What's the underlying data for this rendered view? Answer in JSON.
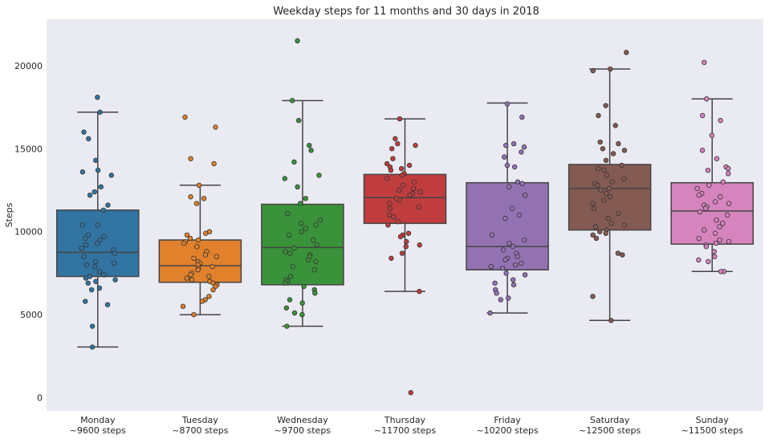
{
  "chart_data": {
    "type": "box",
    "title": "Weekday steps for 11 months and 30 days in 2018",
    "xlabel": "",
    "ylabel": "Steps",
    "ylim": [
      -800,
      22800
    ],
    "yticks": [
      0,
      5000,
      10000,
      15000,
      20000
    ],
    "grid": false,
    "legend": "none",
    "colors": {
      "background": "#eaeaf2",
      "whisker": "#444444",
      "point_edge": "#333333"
    },
    "categories": [
      {
        "day": "Monday",
        "label": "~9600 steps",
        "color": "#3274a1",
        "whisker_low": 3050,
        "q1": 7300,
        "median": 8750,
        "q3": 11300,
        "whisker_high": 17200,
        "points": [
          18100,
          17200,
          16000,
          15600,
          14300,
          13700,
          13600,
          13400,
          12700,
          12400,
          12200,
          11600,
          11300,
          10400,
          10400,
          9800,
          9700,
          9600,
          9500,
          9300,
          9200,
          9000,
          8900,
          8700,
          8500,
          8200,
          8100,
          8000,
          7900,
          7600,
          7400,
          7300,
          7200,
          7100,
          7000,
          6900,
          6600,
          6500,
          5800,
          5600,
          4300,
          3050
        ]
      },
      {
        "day": "Tuesday",
        "label": "~8700 steps",
        "color": "#e1812c",
        "whisker_low": 5000,
        "q1": 6950,
        "median": 7950,
        "q3": 9500,
        "whisker_high": 12800,
        "points": [
          16900,
          16300,
          14400,
          14100,
          12800,
          12100,
          12000,
          11700,
          10000,
          9900,
          9800,
          9600,
          9500,
          9400,
          9300,
          9100,
          8800,
          8600,
          8500,
          8400,
          8200,
          8100,
          8000,
          7900,
          7800,
          7700,
          7500,
          7400,
          7300,
          7200,
          7100,
          7000,
          6900,
          6800,
          6700,
          6500,
          6100,
          5900,
          5800,
          5500,
          5000
        ]
      },
      {
        "day": "Wednesday",
        "label": "~9700 steps",
        "color": "#3a923a",
        "whisker_low": 4300,
        "q1": 6800,
        "median": 9050,
        "q3": 11650,
        "whisker_high": 17900,
        "points": [
          21500,
          17900,
          16700,
          15200,
          14900,
          14200,
          13400,
          13200,
          12700,
          12000,
          11700,
          11100,
          10700,
          10500,
          10400,
          10200,
          10000,
          9800,
          9500,
          9200,
          9000,
          8800,
          8700,
          8600,
          8500,
          8300,
          8200,
          7900,
          7700,
          7300,
          7100,
          7000,
          6900,
          6700,
          6500,
          6300,
          5900,
          5700,
          5400,
          5100,
          5000,
          4300
        ]
      },
      {
        "day": "Thursday",
        "label": "~11700 steps",
        "color": "#c03d3e",
        "whisker_low": 6400,
        "q1": 10500,
        "median": 12050,
        "q3": 13450,
        "whisker_high": 16800,
        "points": [
          16800,
          15600,
          15300,
          15200,
          15000,
          14400,
          14100,
          14000,
          13900,
          13800,
          13700,
          13500,
          13400,
          13200,
          13000,
          12800,
          12600,
          12500,
          12400,
          12300,
          12200,
          12000,
          11900,
          11700,
          11500,
          11400,
          11000,
          10900,
          10600,
          10400,
          9900,
          9800,
          9700,
          9400,
          9200,
          9100,
          8700,
          8400,
          6400,
          300
        ]
      },
      {
        "day": "Friday",
        "label": "~10200 steps",
        "color": "#9372b2",
        "whisker_low": 5100,
        "q1": 7700,
        "median": 9100,
        "q3": 12950,
        "whisker_high": 17750,
        "points": [
          17700,
          16900,
          15300,
          15200,
          15100,
          14800,
          14500,
          14000,
          13900,
          13000,
          12900,
          12700,
          12200,
          11400,
          11000,
          10800,
          9800,
          9500,
          9300,
          9100,
          8900,
          8700,
          8500,
          8400,
          8300,
          8100,
          8000,
          7900,
          7800,
          7500,
          7400,
          7100,
          6900,
          6800,
          6500,
          6300,
          6000,
          5900,
          5100
        ]
      },
      {
        "day": "Saturday",
        "label": "~12500 steps",
        "color": "#845b53",
        "whisker_low": 4650,
        "q1": 10100,
        "median": 12600,
        "q3": 14050,
        "whisker_high": 19800,
        "points": [
          20800,
          19800,
          19700,
          17600,
          17000,
          16400,
          15400,
          15300,
          15000,
          14900,
          14700,
          14300,
          14000,
          13800,
          13700,
          13400,
          13200,
          13000,
          12900,
          12800,
          12600,
          12500,
          12300,
          12100,
          11900,
          11700,
          11400,
          11100,
          10800,
          10500,
          10400,
          10300,
          10100,
          10000,
          9900,
          9800,
          9600,
          8700,
          8600,
          6100,
          4650
        ]
      },
      {
        "day": "Sunday",
        "label": "~11500 steps",
        "color": "#d684bd",
        "whisker_low": 7600,
        "q1": 9250,
        "median": 11250,
        "q3": 12950,
        "whisker_high": 18000,
        "points": [
          20200,
          18000,
          17000,
          16700,
          15800,
          14900,
          14400,
          13900,
          13800,
          13700,
          13500,
          13000,
          12800,
          12600,
          12300,
          12200,
          12100,
          11800,
          11700,
          11600,
          11500,
          11400,
          11200,
          11000,
          10700,
          10500,
          10300,
          10100,
          9900,
          9600,
          9500,
          9400,
          9300,
          9200,
          9100,
          8800,
          8500,
          8300,
          8200,
          7600,
          7600
        ]
      }
    ]
  }
}
